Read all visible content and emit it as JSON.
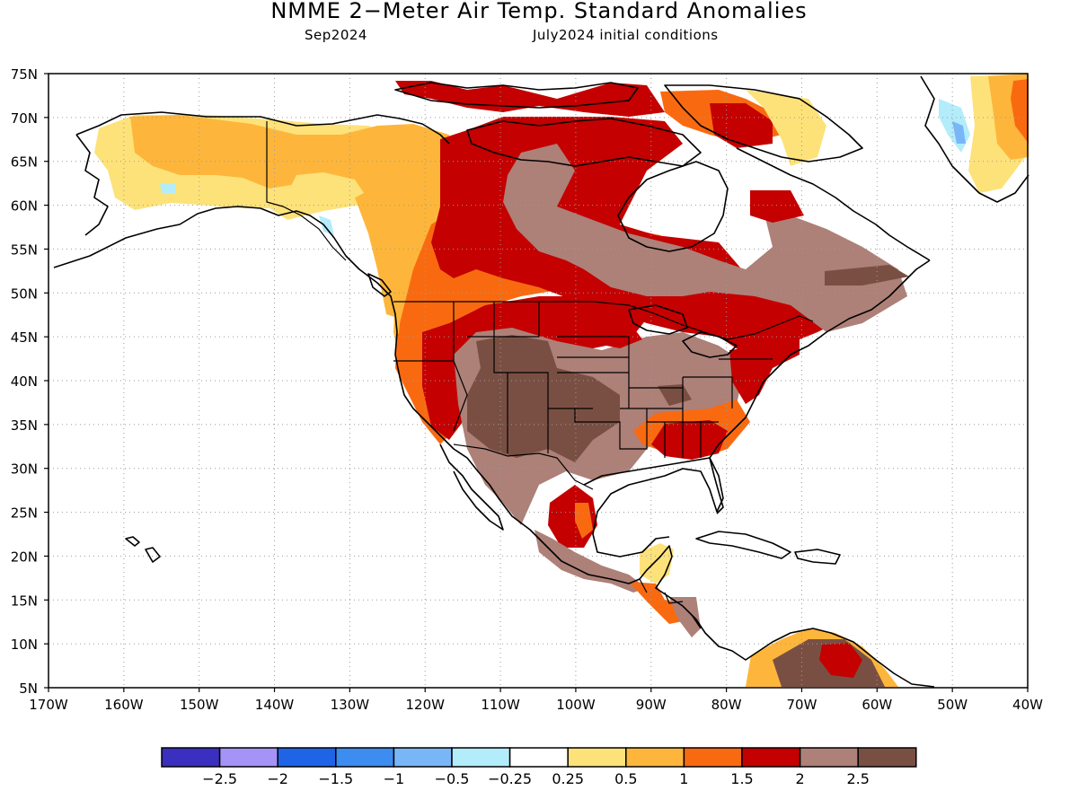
{
  "title": "NMME 2−Meter Air Temp. Standard Anomalies",
  "subtitle_left": "Sep2024",
  "subtitle_right": "July2024 initial conditions",
  "lat_labels": [
    "75N",
    "70N",
    "65N",
    "60N",
    "55N",
    "50N",
    "45N",
    "40N",
    "35N",
    "30N",
    "25N",
    "20N",
    "15N",
    "10N",
    "5N"
  ],
  "lon_labels": [
    "170W",
    "160W",
    "150W",
    "140W",
    "130W",
    "120W",
    "110W",
    "100W",
    "90W",
    "80W",
    "70W",
    "60W",
    "50W",
    "40W"
  ],
  "colorbar": {
    "colors": [
      "#3b2fbf",
      "#a593f7",
      "#1f64e6",
      "#3d8cf0",
      "#79b6f8",
      "#b3ecfa",
      "#ffffff",
      "#fde27a",
      "#fdb63b",
      "#f96a10",
      "#c40000",
      "#ad8078",
      "#7a4f43"
    ],
    "labels": [
      "−2.5",
      "−2",
      "−1.5",
      "−1",
      "−0.5",
      "−0.25",
      "0.25",
      "0.5",
      "1",
      "1.5",
      "2",
      "2.5"
    ]
  },
  "legend_colors": {
    "near_normal": "#ffffff",
    "above_0_25": "#fde27a",
    "above_0_5": "#fdb63b",
    "above_1": "#f96a10",
    "above_1_5": "#c40000",
    "above_2": "#ad8078",
    "above_2_5": "#7a4f43",
    "below_0_25": "#b3ecfa",
    "below_0_5": "#79b6f8"
  }
}
